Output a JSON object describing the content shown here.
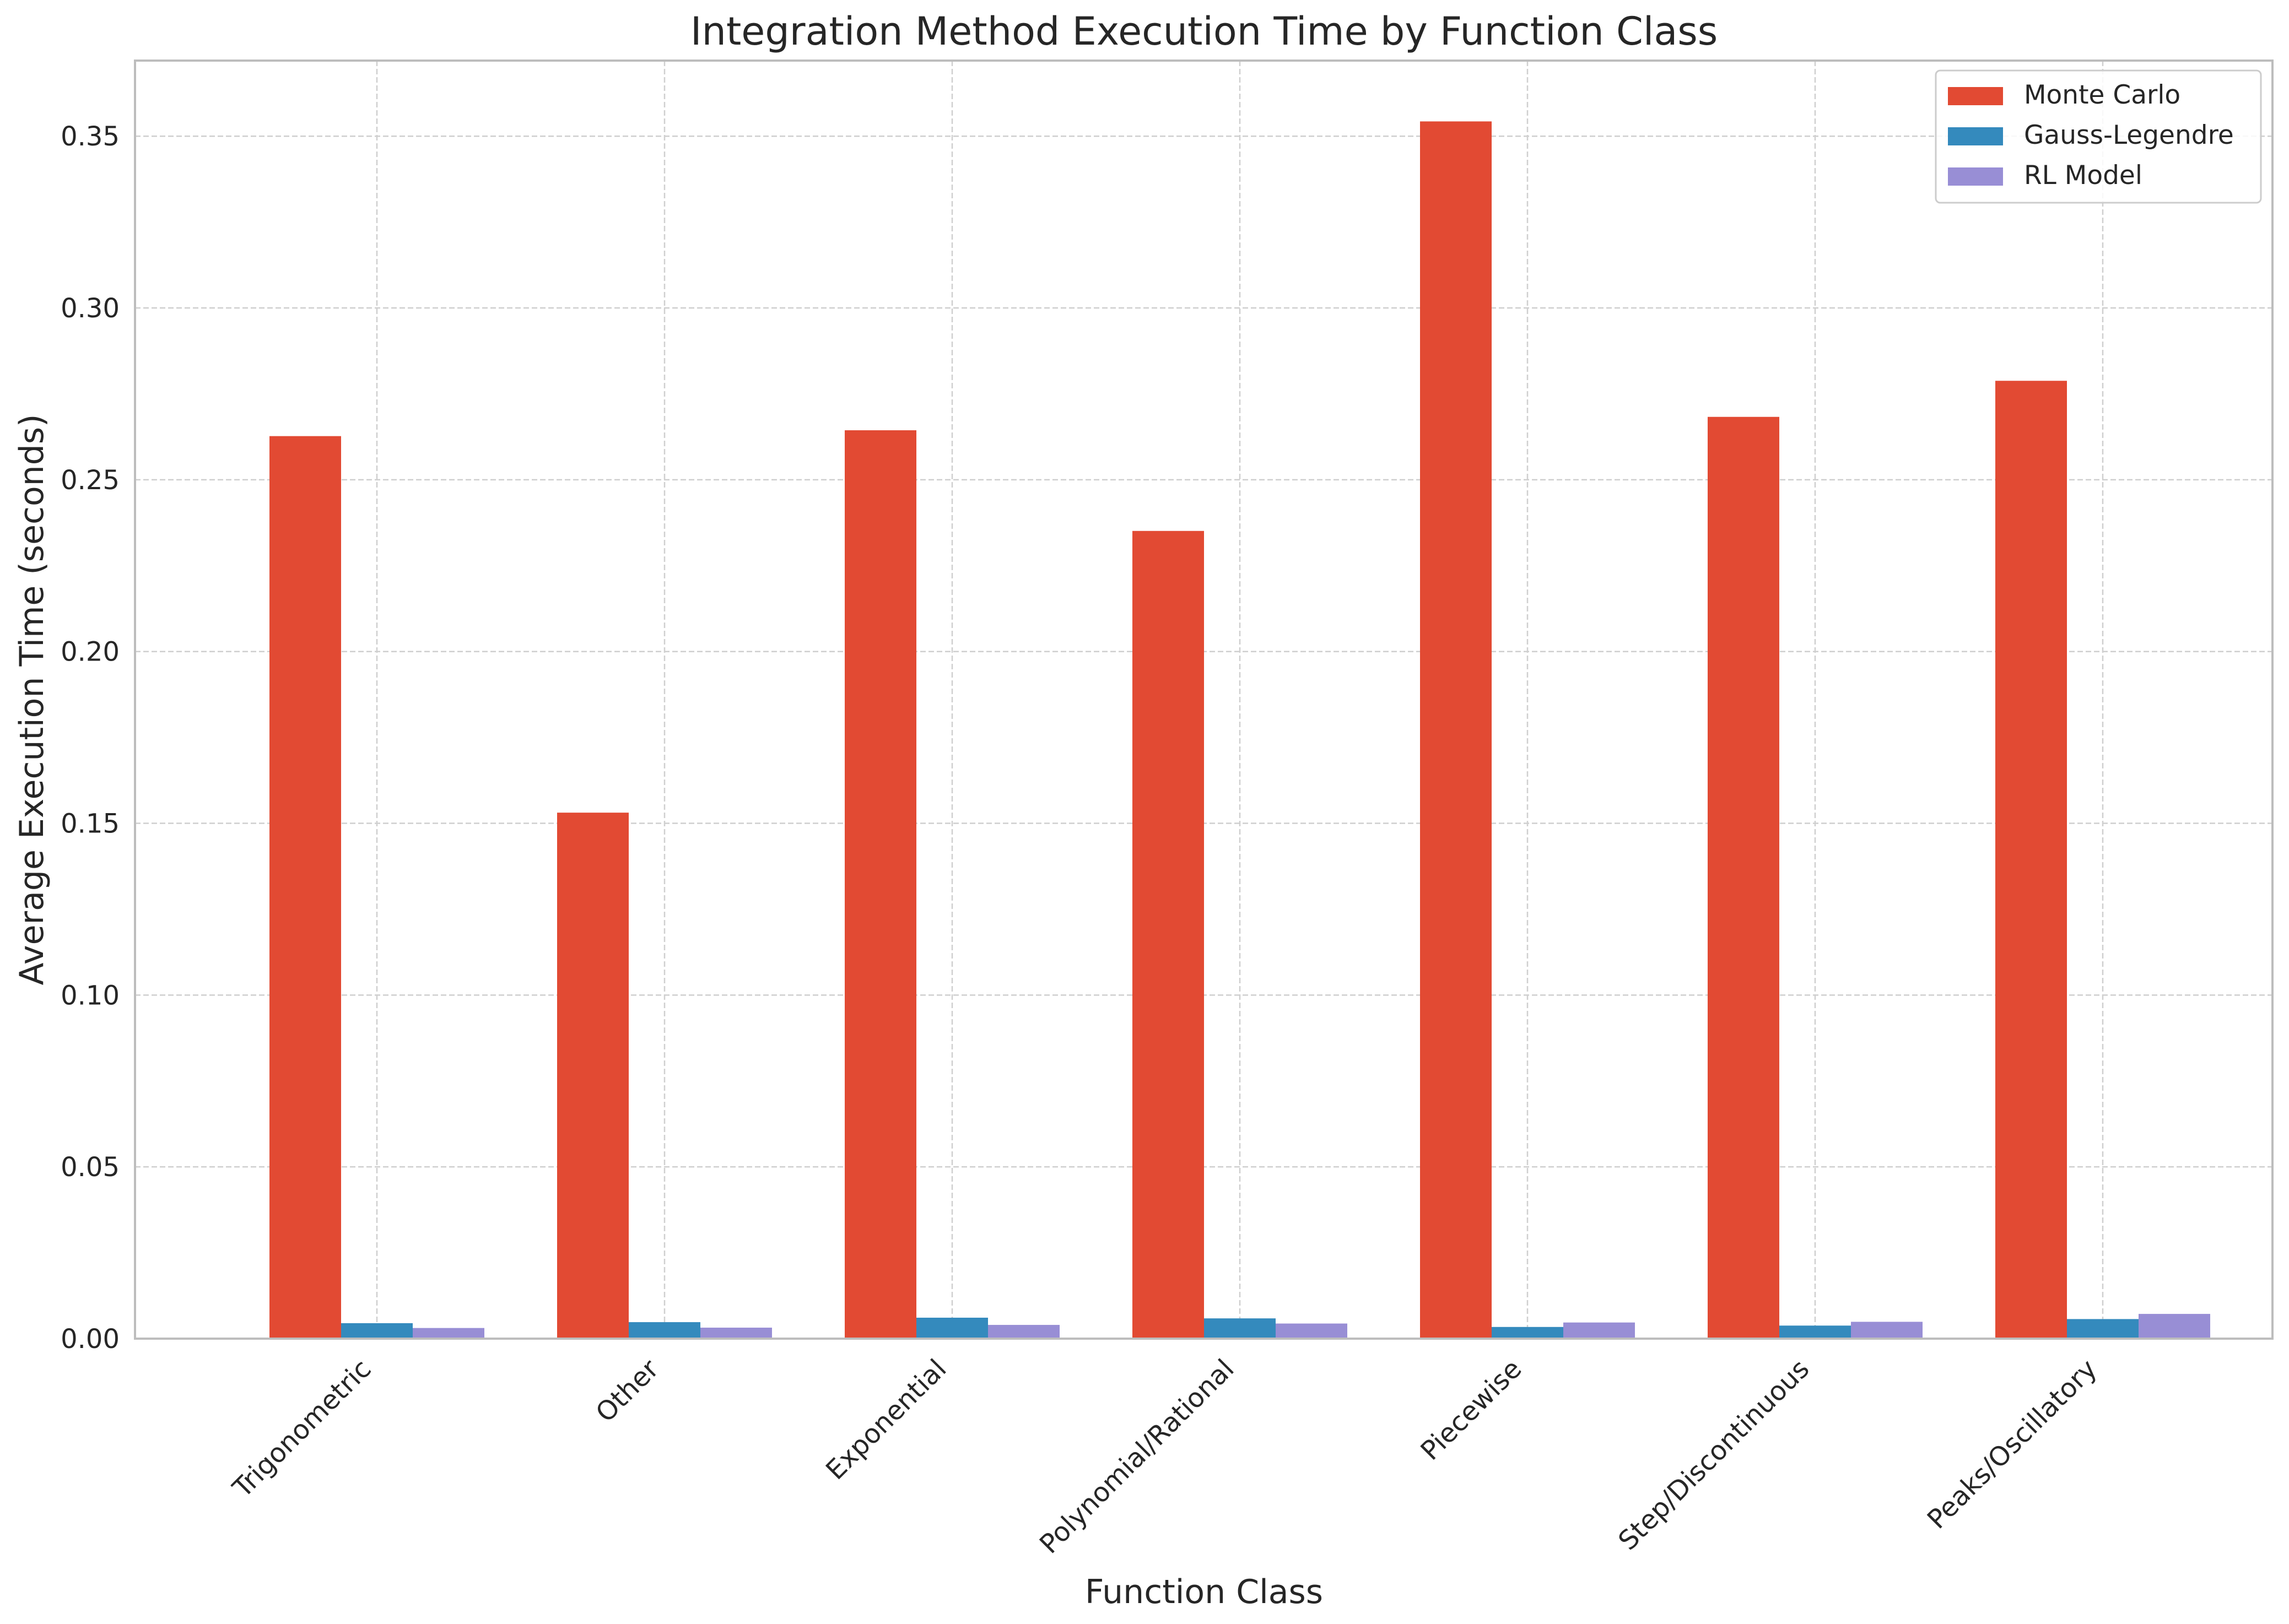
{
  "chart_data": {
    "type": "bar",
    "title": "Integration Method Execution Time by Function Class",
    "xlabel": "Function Class",
    "ylabel": "Average Execution Time (seconds)",
    "categories": [
      "Trigonometric",
      "Other",
      "Exponential",
      "Polynomial/Rational",
      "Piecewise",
      "Step/Discontinuous",
      "Peaks/Oscillatory"
    ],
    "series": [
      {
        "name": "Monte Carlo",
        "color": "#E24A33",
        "values": [
          0.2627,
          0.1531,
          0.2644,
          0.2351,
          0.3543,
          0.2683,
          0.2788
        ]
      },
      {
        "name": "Gauss-Legendre",
        "color": "#348ABD",
        "values": [
          0.0045,
          0.0048,
          0.0061,
          0.0059,
          0.0034,
          0.0038,
          0.0057
        ]
      },
      {
        "name": "RL Model",
        "color": "#988ED5",
        "values": [
          0.0031,
          0.0032,
          0.004,
          0.0044,
          0.0047,
          0.0049,
          0.0072
        ]
      }
    ],
    "ylim": [
      0,
      0.372
    ],
    "yticks": [
      0.0,
      0.05,
      0.1,
      0.15,
      0.2,
      0.25,
      0.3,
      0.35
    ],
    "ytick_labels": [
      "0.00",
      "0.05",
      "0.10",
      "0.15",
      "0.20",
      "0.25",
      "0.30",
      "0.35"
    ],
    "grid": true,
    "legend_position": "top-right",
    "colors": {
      "grid": "#cfcfcf",
      "spine": "#bdbdbd",
      "text": "#262626"
    }
  }
}
